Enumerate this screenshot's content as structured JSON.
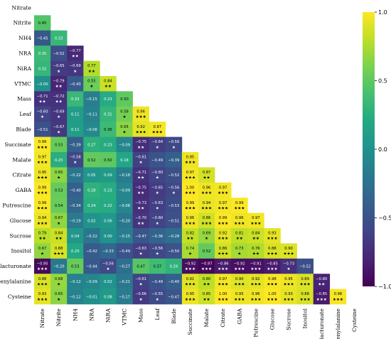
{
  "chart_data": {
    "type": "heatmap",
    "title": "",
    "xlabel": "",
    "ylabel": "",
    "labels": [
      "Nitrate",
      "Nitrite",
      "NH4",
      "NRA",
      "NiRA",
      "VTMC",
      "Mass",
      "Leaf",
      "Blade",
      "Succinate",
      "Malate",
      "Citrate",
      "GABA",
      "Putrescine",
      "Glucose",
      "Sucrose",
      "Inositol",
      "Galacturonate",
      "Phenylalanine",
      "Cysteine"
    ],
    "lower_triangle": true,
    "cells": [
      [],
      [
        [
          "0.45",
          ""
        ]
      ],
      [
        [
          "−0.45",
          ""
        ],
        [
          "0.33",
          ""
        ]
      ],
      [
        [
          "0.35",
          ""
        ],
        [
          "−0.52",
          ""
        ],
        [
          "−0.77",
          "★★"
        ]
      ],
      [
        [
          "0.32",
          ""
        ],
        [
          "−0.65",
          "★"
        ],
        [
          "−0.69",
          "★"
        ],
        [
          "0.77",
          "★★"
        ]
      ],
      [
        [
          "−0.00",
          ""
        ],
        [
          "−0.79",
          "★★"
        ],
        [
          "−0.43",
          ""
        ],
        [
          "0.55",
          "★"
        ],
        [
          "0.84",
          "★★"
        ]
      ],
      [
        [
          "−0.71",
          "★★"
        ],
        [
          "−0.72",
          "★★"
        ],
        [
          "0.33",
          ""
        ],
        [
          "−0.15",
          ""
        ],
        [
          "0.23",
          ""
        ],
        [
          "0.50",
          ""
        ]
      ],
      [
        [
          "−0.60",
          "★"
        ],
        [
          "−0.69",
          "★"
        ],
        [
          "0.11",
          ""
        ],
        [
          "−0.11",
          ""
        ],
        [
          "0.31",
          ""
        ],
        [
          "0.58",
          "★"
        ],
        [
          "0.96",
          "★★★"
        ]
      ],
      [
        [
          "−0.51",
          ""
        ],
        [
          "−0.67",
          "★"
        ],
        [
          "0.11",
          ""
        ],
        [
          "−0.06",
          ""
        ],
        [
          "0.36",
          ""
        ],
        [
          "0.65",
          "★"
        ],
        [
          "0.92",
          "★★★"
        ],
        [
          "0.97",
          "★★★"
        ]
      ],
      [
        [
          "0.99",
          "★★★"
        ],
        [
          "0.53",
          ""
        ],
        [
          "−0.39",
          ""
        ],
        [
          "0.27",
          ""
        ],
        [
          "0.23",
          ""
        ],
        [
          "−0.09",
          ""
        ],
        [
          "−0.75",
          "★★"
        ],
        [
          "−0.64",
          "★"
        ],
        [
          "−0.56",
          "★"
        ]
      ],
      [
        [
          "0.97",
          "★★★"
        ],
        [
          "0.25",
          ""
        ],
        [
          "−0.58",
          "★"
        ],
        [
          "0.52",
          ""
        ],
        [
          "0.50",
          ""
        ],
        [
          "0.18",
          ""
        ],
        [
          "−0.61",
          "★"
        ],
        [
          "−0.49",
          ""
        ],
        [
          "−0.39",
          ""
        ],
        [
          "0.95",
          "★★★"
        ]
      ],
      [
        [
          "0.95",
          "★★★"
        ],
        [
          "0.65",
          "★"
        ],
        [
          "−0.22",
          ""
        ],
        [
          "0.05",
          ""
        ],
        [
          "0.09",
          ""
        ],
        [
          "−0.18",
          ""
        ],
        [
          "−0.71",
          "★★"
        ],
        [
          "−0.60",
          "★"
        ],
        [
          "−0.52",
          ""
        ],
        [
          "0.97",
          "★★★"
        ],
        [
          "0.87",
          "★★"
        ]
      ],
      [
        [
          "0.99",
          "★★★"
        ],
        [
          "0.53",
          ""
        ],
        [
          "−0.40",
          ""
        ],
        [
          "0.28",
          ""
        ],
        [
          "0.23",
          ""
        ],
        [
          "−0.09",
          ""
        ],
        [
          "−0.75",
          "★★"
        ],
        [
          "−0.65",
          "★"
        ],
        [
          "−0.56",
          "★"
        ],
        [
          "1.00",
          "★★★"
        ],
        [
          "0.96",
          "★★★"
        ],
        [
          "0.97",
          "★★★"
        ]
      ],
      [
        [
          "0.99",
          "★★★"
        ],
        [
          "0.54",
          ""
        ],
        [
          "−0.34",
          ""
        ],
        [
          "0.24",
          ""
        ],
        [
          "0.22",
          ""
        ],
        [
          "−0.08",
          ""
        ],
        [
          "−0.73",
          "★★"
        ],
        [
          "−0.63",
          "★"
        ],
        [
          "−0.53",
          ""
        ],
        [
          "0.99",
          "★★★"
        ],
        [
          "0.94",
          "★★★"
        ],
        [
          "0.97",
          "★★★"
        ],
        [
          "0.99",
          "★★★"
        ]
      ],
      [
        [
          "0.94",
          "★★★"
        ],
        [
          "0.67",
          "★"
        ],
        [
          "−0.19",
          ""
        ],
        [
          "0.02",
          ""
        ],
        [
          "0.06",
          ""
        ],
        [
          "−0.20",
          ""
        ],
        [
          "−0.70",
          "★★"
        ],
        [
          "−0.60",
          "★"
        ],
        [
          "−0.51",
          ""
        ],
        [
          "0.96",
          "★★★"
        ],
        [
          "0.86",
          "★★★"
        ],
        [
          "0.99",
          "★★★"
        ],
        [
          "0.96",
          "★★★"
        ],
        [
          "0.97",
          "★★★"
        ]
      ],
      [
        [
          "0.79",
          "★★"
        ],
        [
          "0.84",
          "★★"
        ],
        [
          "0.04",
          ""
        ],
        [
          "−0.22",
          ""
        ],
        [
          "0.00",
          ""
        ],
        [
          "−0.15",
          ""
        ],
        [
          "−0.47",
          ""
        ],
        [
          "−0.36",
          ""
        ],
        [
          "−0.28",
          ""
        ],
        [
          "0.82",
          "★★"
        ],
        [
          "0.69",
          "★"
        ],
        [
          "0.92",
          "★★★"
        ],
        [
          "0.81",
          "★★"
        ],
        [
          "0.84",
          "★★"
        ],
        [
          "0.93",
          "★★★"
        ]
      ],
      [
        [
          "0.67",
          "★"
        ],
        [
          "0.88",
          "★★★"
        ],
        [
          "0.20",
          ""
        ],
        [
          "−0.42",
          ""
        ],
        [
          "−0.33",
          ""
        ],
        [
          "−0.49",
          ""
        ],
        [
          "−0.63",
          "★"
        ],
        [
          "−0.56",
          "★"
        ],
        [
          "−0.50",
          ""
        ],
        [
          "0.74",
          "★"
        ],
        [
          "0.52",
          ""
        ],
        [
          "0.86",
          "★★★"
        ],
        [
          "0.73",
          "★"
        ],
        [
          "0.76",
          "★★"
        ],
        [
          "0.88",
          "★★★"
        ],
        [
          "0.90",
          "★★★"
        ]
      ],
      [
        [
          "−0.95",
          "★★★"
        ],
        [
          "−0.20",
          ""
        ],
        [
          "0.53",
          ""
        ],
        [
          "−0.44",
          ""
        ],
        [
          "−0.56",
          "★"
        ],
        [
          "−0.27",
          ""
        ],
        [
          "0.47",
          ""
        ],
        [
          "0.37",
          ""
        ],
        [
          "0.29",
          ""
        ],
        [
          "−0.92",
          "★★★"
        ],
        [
          "−0.97",
          "★★★"
        ],
        [
          "−0.86",
          "★★★"
        ],
        [
          "−0.92",
          "★★★"
        ],
        [
          "−0.91",
          "★★★"
        ],
        [
          "−0.85",
          "★★★"
        ],
        [
          "−0.73",
          "★"
        ],
        [
          "−0.52",
          ""
        ]
      ],
      [
        [
          "0.88",
          "★★★"
        ],
        [
          "0.68",
          "★"
        ],
        [
          "−0.12",
          ""
        ],
        [
          "−0.09",
          ""
        ],
        [
          "0.02",
          ""
        ],
        [
          "−0.21",
          ""
        ],
        [
          "−0.61",
          "★"
        ],
        [
          "−0.49",
          ""
        ],
        [
          "−0.40",
          ""
        ],
        [
          "0.91",
          "★★★"
        ],
        [
          "0.80",
          "★★"
        ],
        [
          "0.97",
          "★★★"
        ],
        [
          "0.90",
          "★★★"
        ],
        [
          "0.92",
          "★★★"
        ],
        [
          "0.98",
          "★★★"
        ],
        [
          "0.95",
          "★★★"
        ],
        [
          "0.89",
          "★★★"
        ],
        [
          "−0.80",
          "★★"
        ]
      ],
      [
        [
          "0.93",
          "★★★"
        ],
        [
          "0.65",
          "★"
        ],
        [
          "−0.12",
          ""
        ],
        [
          "−0.01",
          ""
        ],
        [
          "0.08",
          ""
        ],
        [
          "−0.17",
          ""
        ],
        [
          "−0.66",
          "★"
        ],
        [
          "−0.55",
          "★"
        ],
        [
          "−0.47",
          ""
        ],
        [
          "0.95",
          "★★★"
        ],
        [
          "0.85",
          "★★"
        ],
        [
          "1.00",
          "★★★"
        ],
        [
          "0.95",
          "★★★"
        ],
        [
          "0.96",
          "★★★"
        ],
        [
          "1.00",
          "★★★"
        ],
        [
          "0.93",
          "★★★"
        ],
        [
          "0.88",
          "★★★"
        ],
        [
          "−0.85",
          "★★★"
        ],
        [
          "0.98",
          "★★★"
        ]
      ]
    ],
    "vmin": -1.0,
    "vmax": 1.0,
    "colormap": [
      "#440154",
      "#482475",
      "#414487",
      "#355f8d",
      "#2a788e",
      "#21918c",
      "#22a884",
      "#44bf70",
      "#7ad151",
      "#bddf26",
      "#fde725"
    ],
    "colorbar": {
      "ticks": [
        1.0,
        0.5,
        0.0,
        -0.5,
        -1.0
      ],
      "tick_labels": [
        "1.0",
        "0.5",
        "0.0",
        "−0.5",
        "−1.0"
      ]
    }
  }
}
